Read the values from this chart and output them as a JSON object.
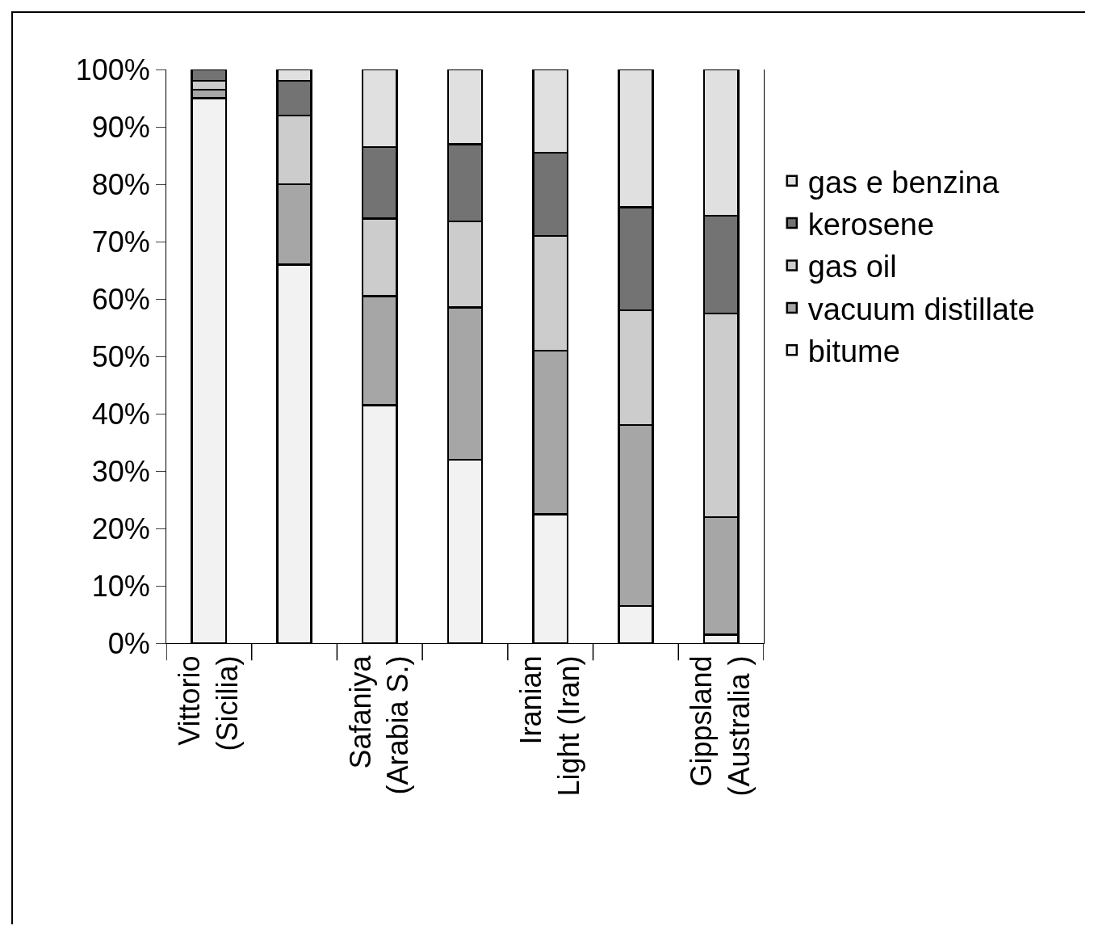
{
  "chart_data": {
    "type": "bar",
    "stacked": true,
    "categories": [
      "Vittorio\n(Sicilia)",
      null,
      "Safaniya\n(Arabia S.)",
      null,
      "Iranian\nLight (Iran)",
      null,
      "Gippsland\n(Australia )"
    ],
    "series": [
      {
        "name": "bitume",
        "color": "#f2f2f2",
        "values": [
          95,
          66,
          41.5,
          32,
          22.5,
          6.5,
          1.5
        ]
      },
      {
        "name": "vacuum distillate",
        "color": "#a6a6a6",
        "values": [
          1.5,
          14,
          19,
          26.5,
          28.5,
          31.5,
          20.5
        ]
      },
      {
        "name": "gas oil",
        "color": "#cccccc",
        "values": [
          1.5,
          12,
          13.5,
          15,
          20,
          20,
          35.5
        ]
      },
      {
        "name": "kerosene",
        "color": "#737373",
        "values": [
          2,
          6,
          12.5,
          13.5,
          14.5,
          18,
          17
        ]
      },
      {
        "name": "gas e benzina",
        "color": "#e0e0e0",
        "values": [
          null,
          2,
          13.5,
          13,
          14.5,
          24,
          25.5
        ]
      }
    ],
    "ylim": [
      0,
      100
    ],
    "yticks": [
      {
        "value": 0,
        "label": "0%"
      },
      {
        "value": 10,
        "label": "10%"
      },
      {
        "value": 20,
        "label": "20%"
      },
      {
        "value": 30,
        "label": "30%"
      },
      {
        "value": 40,
        "label": "40%"
      },
      {
        "value": 50,
        "label": "50%"
      },
      {
        "value": 60,
        "label": "60%"
      },
      {
        "value": 70,
        "label": "70%"
      },
      {
        "value": 80,
        "label": "80%"
      },
      {
        "value": 90,
        "label": "90%"
      },
      {
        "value": 100,
        "label": "100%"
      }
    ],
    "grid": false,
    "legend": "right"
  }
}
